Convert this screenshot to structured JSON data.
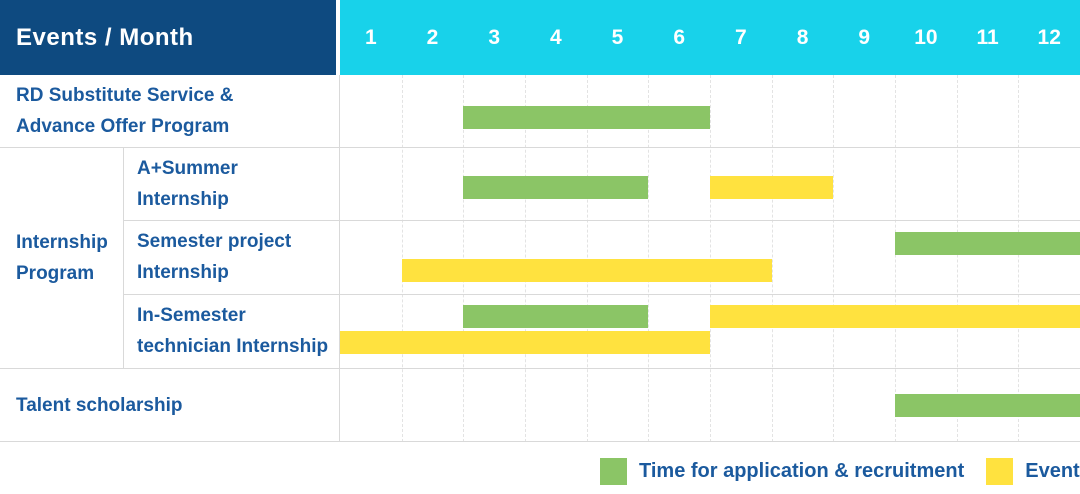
{
  "header": {
    "label": "Events / Month",
    "months": [
      "1",
      "2",
      "3",
      "4",
      "5",
      "6",
      "7",
      "8",
      "9",
      "10",
      "11",
      "12"
    ]
  },
  "colors": {
    "header_navy": "#0e4a80",
    "header_cyan": "#18d2ea",
    "green": "#8bc566",
    "yellow": "#ffe23f",
    "label_blue": "#1b5a9e",
    "grid_line": "#e3e3e3",
    "row_line": "#d9d9d9",
    "background": "#ffffff"
  },
  "legend": [
    {
      "series": "Time for application & recruitment",
      "color_key": "green",
      "label": "Time for application & recruitment"
    },
    {
      "series": "Events",
      "color_key": "yellow",
      "label": "Events"
    }
  ],
  "chart_data": {
    "type": "bar",
    "subtype": "gantt-schedule",
    "title": "Events / Month",
    "x_axis": {
      "unit": "month",
      "ticks": [
        "1",
        "2",
        "3",
        "4",
        "5",
        "6",
        "7",
        "8",
        "9",
        "10",
        "11",
        "12"
      ],
      "range": [
        1,
        12
      ],
      "note": "from_month/to_month are inclusive calendar months"
    },
    "legend_position": "bottom-right",
    "grid": true,
    "series_legend": [
      {
        "name": "Time for application & recruitment",
        "color": "#8bc566"
      },
      {
        "name": "Events",
        "color": "#ffe23f"
      }
    ],
    "rows": [
      {
        "group": "",
        "label": "RD Substitute Service & Advance Offer Program",
        "bars": [
          {
            "series": "Time for application & recruitment",
            "from_month": 3,
            "to_month": 6,
            "lane": 0
          }
        ]
      },
      {
        "group": "Internship Program",
        "label": "A+Summer Internship",
        "bars": [
          {
            "series": "Time for application & recruitment",
            "from_month": 3,
            "to_month": 5,
            "lane": 0
          },
          {
            "series": "Events",
            "from_month": 7,
            "to_month": 8,
            "lane": 0
          }
        ]
      },
      {
        "group": "Internship Program",
        "label": "Semester project Internship",
        "bars": [
          {
            "series": "Time for application & recruitment",
            "from_month": 10,
            "to_month": 12,
            "lane": 0
          },
          {
            "series": "Events",
            "from_month": 2,
            "to_month": 7,
            "lane": 1
          }
        ]
      },
      {
        "group": "Internship Program",
        "label": "In-Semester technician Internship",
        "bars": [
          {
            "series": "Time for application & recruitment",
            "from_month": 3,
            "to_month": 5,
            "lane": 0
          },
          {
            "series": "Events",
            "from_month": 7,
            "to_month": 12,
            "lane": 0
          },
          {
            "series": "Events",
            "from_month": 1,
            "to_month": 6,
            "lane": 1
          }
        ]
      },
      {
        "group": "",
        "label": "Talent scholarship",
        "bars": [
          {
            "series": "Time for application & recruitment",
            "from_month": 10,
            "to_month": 12,
            "lane": 0
          }
        ]
      }
    ]
  }
}
